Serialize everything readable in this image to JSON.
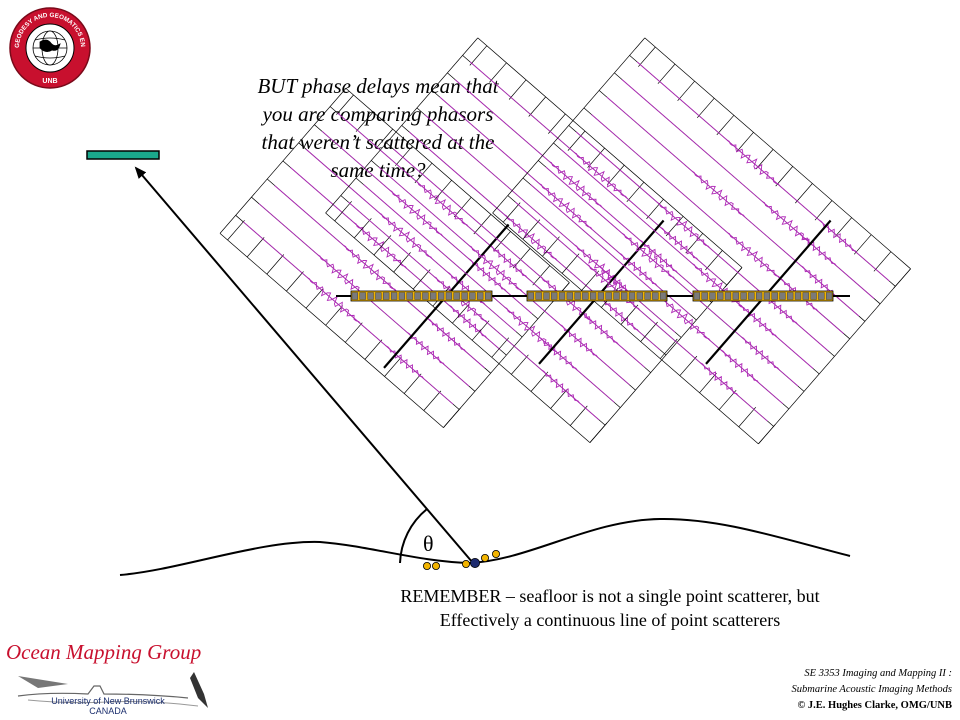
{
  "logo": {
    "ring_text": "GEODESY AND GEOMATICS ENGINEERING",
    "bottom_text": "UNB"
  },
  "heading": {
    "lines": [
      "BUT  phase delays mean that",
      "you are comparing phasors",
      "that weren’t scattered at the",
      "same time?"
    ]
  },
  "angle_label": "θ",
  "note": {
    "lines": [
      "REMEMBER – seafloor is not a single point scatterer, but",
      "Effectively a continuous line of point scatterers"
    ]
  },
  "footer": {
    "org_name": "Ocean Mapping Group",
    "university_line1": "University of New Brunswick",
    "university_line2": "CANADA",
    "course_line1": "SE 3353 Imaging and Mapping II :",
    "course_line2": "Submarine Acoustic Imaging Methods",
    "copyright": "© J.E. Hughes Clarke, OMG/UNB"
  },
  "colors": {
    "receiver": "#1aa88c",
    "wavelet": "#b02ab8",
    "array_element": "#7a7a7a",
    "scatterer": "#f2b400",
    "org_red": "#c8102e"
  }
}
